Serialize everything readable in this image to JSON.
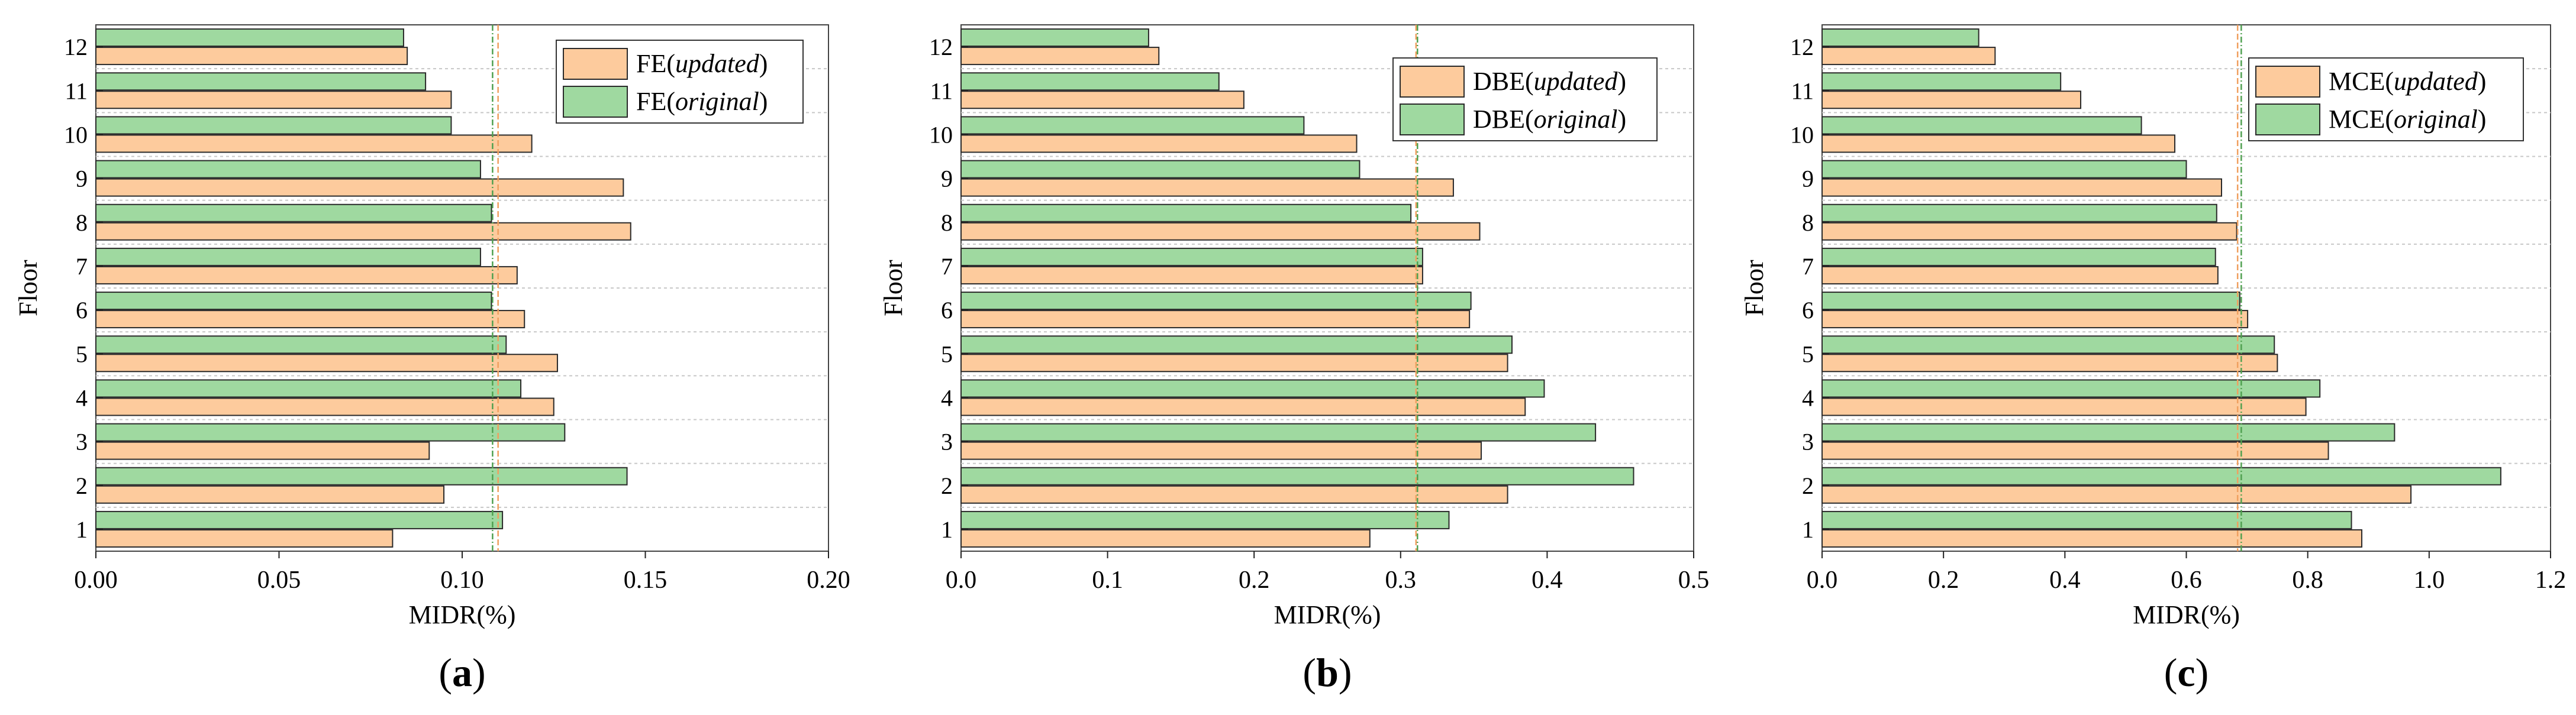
{
  "figure": {
    "colors": {
      "updated": "#FDCB9D",
      "original": "#9FD9A0",
      "updated_line": "#F0A060",
      "original_line": "#4FA050",
      "bar_stroke": "#2a2a2a",
      "grid": "#c8c8c8"
    },
    "panels": [
      {
        "caption": "a",
        "chart_data": {
          "type": "bar",
          "orientation": "horizontal",
          "categories": [
            "1",
            "2",
            "3",
            "4",
            "5",
            "6",
            "7",
            "8",
            "9",
            "10",
            "11",
            "12"
          ],
          "series": [
            {
              "name": "FE(updated)",
              "prefix": "FE(",
              "tag": "updated",
              "values": [
                0.081,
                0.095,
                0.091,
                0.125,
                0.126,
                0.117,
                0.115,
                0.146,
                0.144,
                0.119,
                0.097,
                0.085
              ]
            },
            {
              "name": "FE(original)",
              "prefix": "FE(",
              "tag": "original",
              "values": [
                0.111,
                0.145,
                0.128,
                0.116,
                0.112,
                0.108,
                0.105,
                0.108,
                0.105,
                0.097,
                0.09,
                0.084
              ]
            }
          ],
          "mean_lines": {
            "updated": 0.1098,
            "original": 0.1083
          },
          "xlabel": "MIDR(%)",
          "ylabel": "Floor",
          "xlim": [
            0,
            0.2
          ],
          "xticks": [
            "0.00",
            "0.05",
            "0.10",
            "0.15",
            "0.20"
          ],
          "xtick_values": [
            0,
            0.05,
            0.1,
            0.15,
            0.2
          ],
          "legend_position": "top-right"
        }
      },
      {
        "caption": "b",
        "chart_data": {
          "type": "bar",
          "orientation": "horizontal",
          "categories": [
            "1",
            "2",
            "3",
            "4",
            "5",
            "6",
            "7",
            "8",
            "9",
            "10",
            "11",
            "12"
          ],
          "series": [
            {
              "name": "DBE(updated)",
              "prefix": "DBE(",
              "tag": "updated",
              "values": [
                0.279,
                0.373,
                0.355,
                0.385,
                0.373,
                0.347,
                0.315,
                0.354,
                0.336,
                0.27,
                0.193,
                0.135
              ]
            },
            {
              "name": "DBE(original)",
              "prefix": "DBE(",
              "tag": "original",
              "values": [
                0.333,
                0.459,
                0.433,
                0.398,
                0.376,
                0.348,
                0.315,
                0.307,
                0.272,
                0.234,
                0.176,
                0.128
              ]
            }
          ],
          "mean_lines": {
            "updated": 0.3105,
            "original": 0.3115
          },
          "xlabel": "MIDR(%)",
          "ylabel": "Floor",
          "xlim": [
            0,
            0.5
          ],
          "xticks": [
            "0.0",
            "0.1",
            "0.2",
            "0.3",
            "0.4",
            "0.5"
          ],
          "xtick_values": [
            0,
            0.1,
            0.2,
            0.3,
            0.4,
            0.5
          ],
          "legend_position": "top-right"
        }
      },
      {
        "caption": "c",
        "chart_data": {
          "type": "bar",
          "orientation": "horizontal",
          "categories": [
            "1",
            "2",
            "3",
            "4",
            "5",
            "6",
            "7",
            "8",
            "9",
            "10",
            "11",
            "12"
          ],
          "series": [
            {
              "name": "MCE(updated)",
              "prefix": "MCE(",
              "tag": "updated",
              "values": [
                0.889,
                0.97,
                0.834,
                0.797,
                0.75,
                0.701,
                0.652,
                0.683,
                0.658,
                0.581,
                0.426,
                0.285
              ]
            },
            {
              "name": "MCE(original)",
              "prefix": "MCE(",
              "tag": "original",
              "values": [
                0.872,
                1.118,
                0.943,
                0.82,
                0.745,
                0.688,
                0.648,
                0.65,
                0.6,
                0.526,
                0.393,
                0.258
              ]
            }
          ],
          "mean_lines": {
            "updated": 0.6845,
            "original": 0.6905
          },
          "xlabel": "MIDR(%)",
          "ylabel": "Floor",
          "xlim": [
            0,
            1.2
          ],
          "xticks": [
            "0.0",
            "0.2",
            "0.4",
            "0.6",
            "0.8",
            "1.0",
            "1.2"
          ],
          "xtick_values": [
            0,
            0.2,
            0.4,
            0.6,
            0.8,
            1.0,
            1.2
          ],
          "legend_position": "top-right"
        }
      }
    ]
  }
}
